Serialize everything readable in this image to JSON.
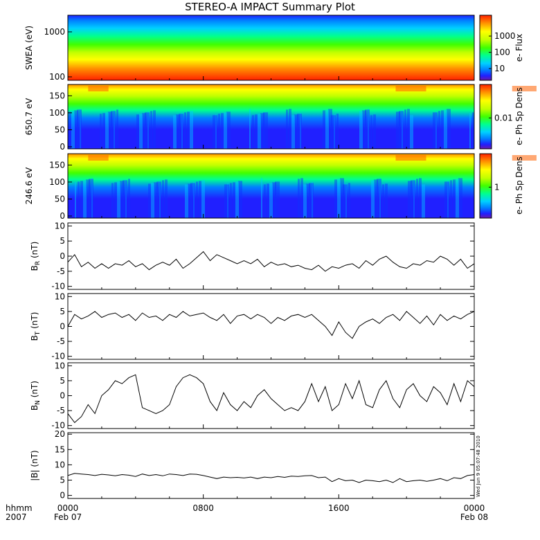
{
  "title": "STEREO-A IMPACT Summary Plot",
  "colorbar_colors": [
    "#6a1aa8",
    "#2020ff",
    "#0080ff",
    "#00d0ff",
    "#00ff90",
    "#40ff00",
    "#c0ff00",
    "#ffff00",
    "#ff9000",
    "#ff2000"
  ],
  "chart_data": [
    {
      "type": "heatmap",
      "ylabel": "SWEA (eV)",
      "yscale": "log",
      "yticks": [
        "100",
        "1000"
      ],
      "colorbar_label": "e- Flux",
      "colorbar_ticks": [
        "10",
        "100",
        "1000"
      ]
    },
    {
      "type": "heatmap",
      "ylabel": "650.7 eV",
      "yticks": [
        "0",
        "50",
        "100",
        "150"
      ],
      "colorbar_label": "e- Ph Sp Dens",
      "colorbar_ticks": [
        "0.01"
      ]
    },
    {
      "type": "heatmap",
      "ylabel": "246.6 eV",
      "yticks": [
        "0",
        "50",
        "100",
        "150"
      ],
      "colorbar_label": "e- Ph Sp Dens",
      "colorbar_ticks": [
        "1"
      ]
    },
    {
      "type": "line",
      "ylabel": "B",
      "ylabel_sub": "R",
      "ylabel_unit": "(nT)",
      "ylim": [
        -11,
        11
      ],
      "yticks": [
        "-10",
        "-5",
        "0",
        "5",
        "10"
      ],
      "x": [
        0.0,
        0.4,
        0.8,
        1.2,
        1.6,
        2.0,
        2.4,
        2.8,
        3.2,
        3.6,
        4.0,
        4.4,
        4.8,
        5.2,
        5.6,
        6.0,
        6.4,
        6.8,
        7.2,
        7.6,
        8.0,
        8.4,
        8.8,
        9.2,
        9.6,
        10.0,
        10.4,
        10.8,
        11.2,
        11.6,
        12.0,
        12.4,
        12.8,
        13.2,
        13.6,
        14.0,
        14.4,
        14.8,
        15.2,
        15.6,
        16.0,
        16.4,
        16.8,
        17.2,
        17.6,
        18.0,
        18.4,
        18.8,
        19.2,
        19.6,
        20.0,
        20.4,
        20.8,
        21.2,
        21.6,
        22.0,
        22.4,
        22.8,
        23.2,
        23.6,
        24.0
      ],
      "values": [
        -2,
        0.5,
        -3.5,
        -2,
        -4,
        -2.5,
        -4,
        -2.5,
        -3,
        -1.5,
        -3.5,
        -2.5,
        -4.5,
        -3,
        -2,
        -3,
        -1,
        -4,
        -2.5,
        -0.5,
        1.5,
        -1.5,
        0.5,
        -0.5,
        -1.5,
        -2.5,
        -1.5,
        -2.5,
        -1,
        -3.5,
        -2,
        -3,
        -2.5,
        -3.5,
        -3,
        -4,
        -4.5,
        -3,
        -5,
        -3.5,
        -4,
        -3,
        -2.5,
        -4,
        -1.5,
        -3,
        -1,
        0,
        -2,
        -3.5,
        -4,
        -2.5,
        -3,
        -1.5,
        -2,
        0,
        -1,
        -3,
        -1,
        -4,
        -2.5
      ]
    },
    {
      "type": "line",
      "ylabel": "B",
      "ylabel_sub": "T",
      "ylabel_unit": "(nT)",
      "ylim": [
        -11,
        11
      ],
      "yticks": [
        "-10",
        "-5",
        "0",
        "5",
        "10"
      ],
      "x": [
        0.0,
        0.4,
        0.8,
        1.2,
        1.6,
        2.0,
        2.4,
        2.8,
        3.2,
        3.6,
        4.0,
        4.4,
        4.8,
        5.2,
        5.6,
        6.0,
        6.4,
        6.8,
        7.2,
        7.6,
        8.0,
        8.4,
        8.8,
        9.2,
        9.6,
        10.0,
        10.4,
        10.8,
        11.2,
        11.6,
        12.0,
        12.4,
        12.8,
        13.2,
        13.6,
        14.0,
        14.4,
        14.8,
        15.2,
        15.6,
        16.0,
        16.4,
        16.8,
        17.2,
        17.6,
        18.0,
        18.4,
        18.8,
        19.2,
        19.6,
        20.0,
        20.4,
        20.8,
        21.2,
        21.6,
        22.0,
        22.4,
        22.8,
        23.2,
        23.6,
        24.0
      ],
      "values": [
        0,
        4,
        2.5,
        3.5,
        5,
        3,
        4,
        4.5,
        3,
        4,
        2,
        4.5,
        3,
        3.5,
        2,
        4,
        3,
        5,
        3.5,
        4,
        4.5,
        3,
        2,
        4,
        1,
        3.5,
        4,
        2.5,
        4,
        3,
        1,
        3,
        2,
        3.5,
        4,
        3,
        4,
        2,
        0,
        -3,
        1.5,
        -2,
        -4,
        0,
        1.5,
        2.5,
        1,
        3,
        4,
        2,
        5,
        3,
        1,
        3.5,
        0.5,
        4,
        2,
        3.5,
        2.5,
        4,
        5
      ]
    },
    {
      "type": "line",
      "ylabel": "B",
      "ylabel_sub": "N",
      "ylabel_unit": "(nT)",
      "ylim": [
        -11,
        11
      ],
      "yticks": [
        "-10",
        "-5",
        "0",
        "5",
        "10"
      ],
      "x": [
        0.0,
        0.4,
        0.8,
        1.2,
        1.6,
        2.0,
        2.4,
        2.8,
        3.2,
        3.6,
        4.0,
        4.4,
        4.8,
        5.2,
        5.6,
        6.0,
        6.4,
        6.8,
        7.2,
        7.6,
        8.0,
        8.4,
        8.8,
        9.2,
        9.6,
        10.0,
        10.4,
        10.8,
        11.2,
        11.6,
        12.0,
        12.4,
        12.8,
        13.2,
        13.6,
        14.0,
        14.4,
        14.8,
        15.2,
        15.6,
        16.0,
        16.4,
        16.8,
        17.2,
        17.6,
        18.0,
        18.4,
        18.8,
        19.2,
        19.6,
        20.0,
        20.4,
        20.8,
        21.2,
        21.6,
        22.0,
        22.4,
        22.8,
        23.2,
        23.6,
        24.0
      ],
      "values": [
        -6,
        -9,
        -7,
        -3,
        -6,
        0,
        2,
        5,
        4,
        6,
        7,
        -4,
        -5,
        -6,
        -5,
        -3,
        3,
        6,
        7,
        6,
        4,
        -2,
        -5,
        1,
        -3,
        -5,
        -2,
        -4,
        0,
        2,
        -1,
        -3,
        -5,
        -4,
        -5,
        -2,
        4,
        -2,
        3,
        -5,
        -3,
        4,
        -1,
        5,
        -3,
        -4,
        2,
        5,
        -1,
        -4,
        2,
        4,
        0,
        -2,
        3,
        1,
        -3,
        4,
        -2,
        5,
        3
      ]
    },
    {
      "type": "line",
      "ylabel": "|B| (nT)",
      "ylim": [
        -1,
        20.5
      ],
      "yticks": [
        "0",
        "5",
        "10",
        "15",
        "20"
      ],
      "x": [
        0.0,
        0.4,
        0.8,
        1.2,
        1.6,
        2.0,
        2.4,
        2.8,
        3.2,
        3.6,
        4.0,
        4.4,
        4.8,
        5.2,
        5.6,
        6.0,
        6.4,
        6.8,
        7.2,
        7.6,
        8.0,
        8.4,
        8.8,
        9.2,
        9.6,
        10.0,
        10.4,
        10.8,
        11.2,
        11.6,
        12.0,
        12.4,
        12.8,
        13.2,
        13.6,
        14.0,
        14.4,
        14.8,
        15.2,
        15.6,
        16.0,
        16.4,
        16.8,
        17.2,
        17.6,
        18.0,
        18.4,
        18.8,
        19.2,
        19.6,
        20.0,
        20.4,
        20.8,
        21.2,
        21.6,
        22.0,
        22.4,
        22.8,
        23.2,
        23.6,
        24.0
      ],
      "values": [
        6.5,
        7.2,
        7,
        6.8,
        6.5,
        6.9,
        6.7,
        6.4,
        6.8,
        6.6,
        6.2,
        7,
        6.5,
        6.8,
        6.4,
        7,
        6.8,
        6.5,
        7,
        6.9,
        6.5,
        6,
        5.5,
        6,
        5.8,
        5.9,
        5.7,
        6,
        5.5,
        6,
        5.8,
        6.2,
        5.9,
        6.3,
        6.2,
        6.4,
        6.5,
        5.8,
        6,
        4.5,
        5.5,
        4.8,
        5,
        4.2,
        5,
        4.8,
        4.5,
        5,
        4.2,
        5.5,
        4.5,
        4.8,
        5,
        4.6,
        5,
        5.5,
        4.8,
        5.8,
        5.5,
        6.5,
        6.8
      ]
    }
  ],
  "xaxis": {
    "hhmm_label": "hhmm",
    "year_label": "2007",
    "ticks": [
      {
        "time": "0000",
        "date": "Feb 07"
      },
      {
        "time": "0800",
        "date": ""
      },
      {
        "time": "1600",
        "date": ""
      },
      {
        "time": "0000",
        "date": "Feb 08"
      }
    ]
  },
  "timestamp": "Wed Jun  9 05:07:48 2010"
}
